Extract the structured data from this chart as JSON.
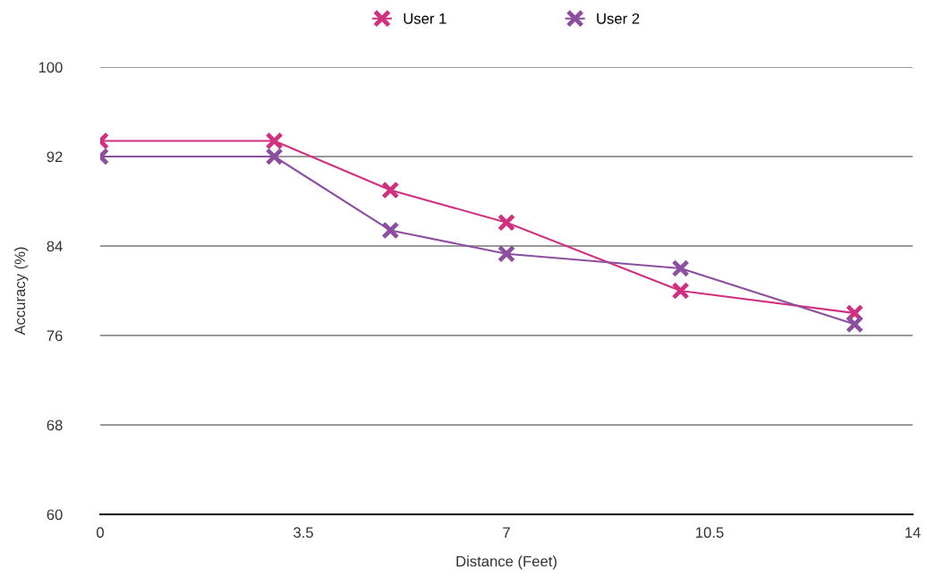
{
  "chart_data": {
    "type": "line",
    "xlabel": "Distance (Feet)",
    "ylabel": "Accuracy (%)",
    "series": [
      {
        "name": "User 1",
        "color": "#d0307f",
        "x": [
          0,
          3,
          5,
          7,
          10,
          13
        ],
        "values": [
          93.4,
          93.4,
          89.0,
          86.1,
          80.0,
          78.0
        ]
      },
      {
        "name": "User 2",
        "color": "#8c4f9f",
        "x": [
          0,
          3,
          5,
          7,
          10,
          13
        ],
        "values": [
          92.0,
          92.0,
          85.4,
          83.3,
          82.0,
          77.0
        ]
      }
    ],
    "xlim": [
      0,
      14
    ],
    "xticks": [
      0,
      3.5,
      7,
      10.5,
      14
    ],
    "ylim": [
      60,
      100
    ],
    "yticks": [
      60,
      68,
      76,
      84,
      92,
      100
    ],
    "grid": "y",
    "legend": "top",
    "marker": "cross",
    "line_style": "solid"
  }
}
